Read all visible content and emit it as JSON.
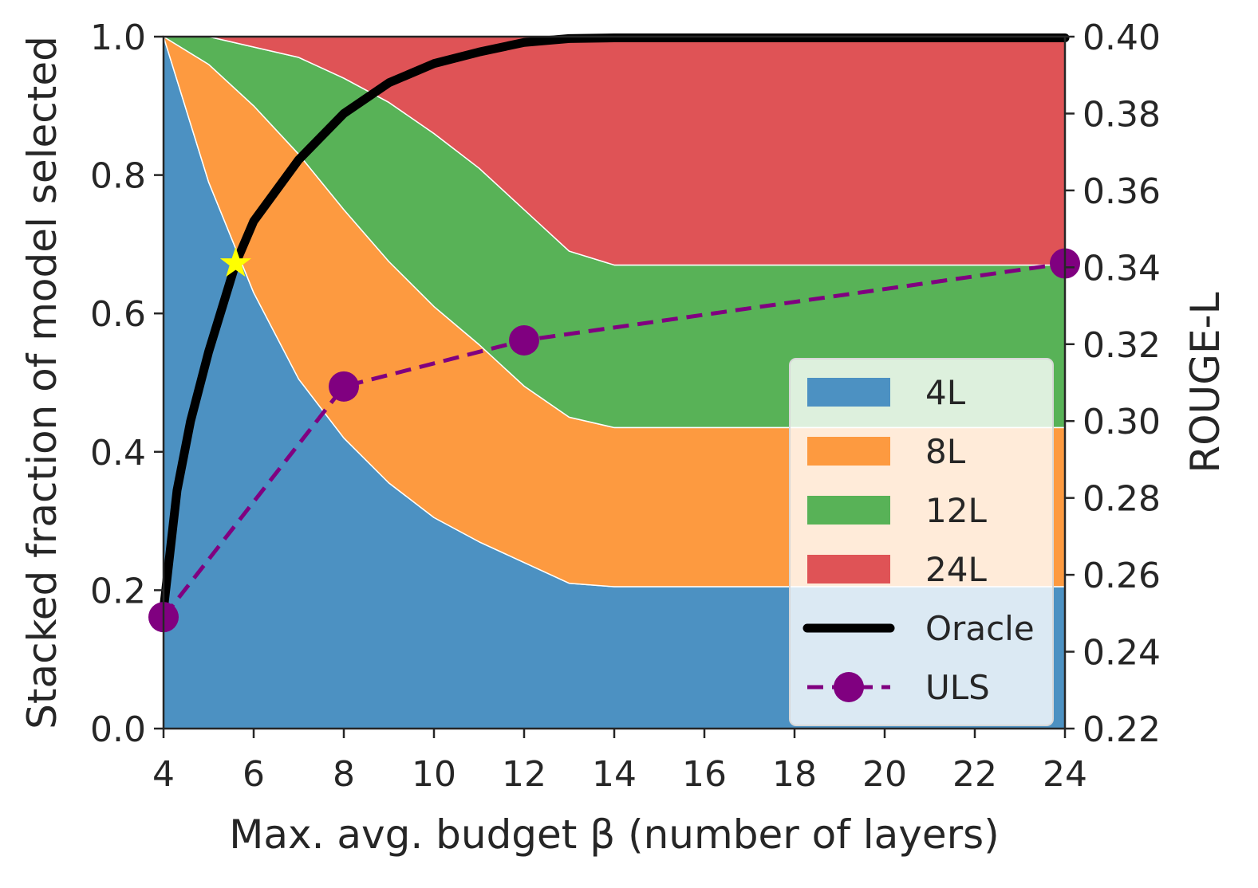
{
  "chart_data": {
    "type": "area",
    "xlabel": "Max. avg. budget β (number of layers)",
    "ylabel": "Stacked fraction of model selected",
    "ylabel_right": "ROUGE-L",
    "xlim": [
      4,
      24
    ],
    "ylim": [
      0,
      1
    ],
    "ylim_right": [
      0.22,
      0.4
    ],
    "x_ticks": [
      4,
      6,
      8,
      10,
      12,
      14,
      16,
      18,
      20,
      22,
      24
    ],
    "y_ticks": [
      "0.0",
      "0.2",
      "0.4",
      "0.6",
      "0.8",
      "1.0"
    ],
    "y_right_ticks": [
      "0.22",
      "0.24",
      "0.26",
      "0.28",
      "0.30",
      "0.32",
      "0.34",
      "0.36",
      "0.38",
      "0.40"
    ],
    "x": [
      4,
      5,
      6,
      7,
      8,
      9,
      10,
      11,
      12,
      13,
      14,
      15,
      16,
      17,
      18,
      19,
      20,
      21,
      22,
      23,
      24
    ],
    "stacked_series": [
      {
        "name": "4L",
        "color": "#4c91c2",
        "values": [
          1.0,
          0.79,
          0.63,
          0.505,
          0.42,
          0.355,
          0.305,
          0.27,
          0.24,
          0.21,
          0.205,
          0.205,
          0.205,
          0.205,
          0.205,
          0.205,
          0.205,
          0.205,
          0.205,
          0.205,
          0.205
        ]
      },
      {
        "name": "8L",
        "color": "#fd9a40",
        "values": [
          0.0,
          0.17,
          0.27,
          0.325,
          0.33,
          0.32,
          0.305,
          0.285,
          0.255,
          0.24,
          0.23,
          0.23,
          0.23,
          0.23,
          0.23,
          0.23,
          0.23,
          0.23,
          0.23,
          0.23,
          0.23
        ]
      },
      {
        "name": "12L",
        "color": "#58b257",
        "values": [
          0.0,
          0.04,
          0.085,
          0.14,
          0.19,
          0.23,
          0.25,
          0.255,
          0.255,
          0.24,
          0.235,
          0.235,
          0.235,
          0.235,
          0.235,
          0.235,
          0.235,
          0.235,
          0.235,
          0.235,
          0.235
        ]
      },
      {
        "name": "24L",
        "color": "#df5356",
        "values": [
          0.0,
          0.0,
          0.015,
          0.03,
          0.06,
          0.095,
          0.14,
          0.19,
          0.25,
          0.31,
          0.33,
          0.33,
          0.33,
          0.33,
          0.33,
          0.33,
          0.33,
          0.33,
          0.33,
          0.33,
          0.33
        ]
      }
    ],
    "line_series": [
      {
        "name": "Oracle",
        "color": "#000000",
        "style": "solid",
        "axis": "right",
        "x": [
          4,
          4.3,
          4.6,
          5,
          5.6,
          6,
          7,
          8,
          9,
          10,
          11,
          12,
          13,
          14,
          16,
          18,
          20,
          22,
          24
        ],
        "y": [
          0.251,
          0.282,
          0.3,
          0.318,
          0.341,
          0.352,
          0.368,
          0.38,
          0.388,
          0.393,
          0.396,
          0.3985,
          0.3995,
          0.3997,
          0.3997,
          0.3997,
          0.3997,
          0.3997,
          0.3997
        ]
      },
      {
        "name": "ULS",
        "color": "#800080",
        "style": "dashed",
        "marker": "circle",
        "axis": "right",
        "x": [
          4,
          8,
          12,
          24
        ],
        "y": [
          0.249,
          0.309,
          0.321,
          0.341
        ]
      }
    ],
    "star_marker": {
      "x": 5.6,
      "y": 0.341,
      "color": "#ffff00"
    },
    "legend": {
      "position": "lower right",
      "entries": [
        "4L",
        "8L",
        "12L",
        "24L",
        "Oracle",
        "ULS"
      ]
    }
  }
}
